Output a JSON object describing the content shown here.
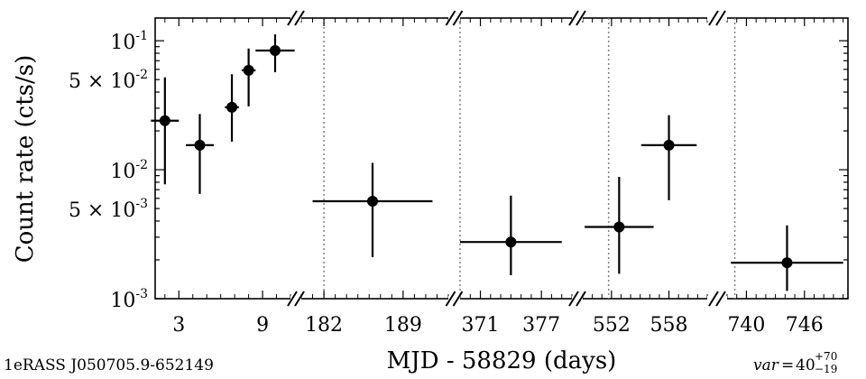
{
  "chart_data": {
    "type": "scatter",
    "title": "",
    "xlabel": "MJD - 58829 (days)",
    "ylabel": "Count rate (cts/s)",
    "yscale": "log",
    "ylim": [
      0.001,
      0.15
    ],
    "ytick_labels": [
      {
        "value": 0.1,
        "label": "10^{-1}"
      },
      {
        "value": 0.05,
        "label": "5 × 10^{-2}"
      },
      {
        "value": 0.01,
        "label": "10^{-2}"
      },
      {
        "value": 0.005,
        "label": "5 × 10^{-3}"
      },
      {
        "value": 0.001,
        "label": "10^{-3}"
      }
    ],
    "broken_x_axis": true,
    "segments": [
      {
        "xlim": [
          1.3,
          11.0
        ],
        "xticks": [
          3,
          9
        ],
        "xtick_labels": [
          "3",
          "9"
        ],
        "points": [
          {
            "x": 2.0,
            "y": 0.024,
            "x_err": 1.0,
            "y_low": 0.0077,
            "y_high": 0.052
          },
          {
            "x": 4.5,
            "y": 0.0155,
            "x_err": 1.0,
            "y_low": 0.0065,
            "y_high": 0.027
          },
          {
            "x": 6.8,
            "y": 0.0305,
            "x_err": 0.5,
            "y_low": 0.0165,
            "y_high": 0.055
          },
          {
            "x": 8.0,
            "y": 0.059,
            "x_err": 0.5,
            "y_low": 0.031,
            "y_high": 0.087
          },
          {
            "x": 9.9,
            "y": 0.084,
            "x_err": 1.4,
            "y_low": 0.057,
            "y_high": 0.112
          }
        ]
      },
      {
        "xlim": [
          180.0,
          193.0
        ],
        "vline": 182.0,
        "xticks": [
          182,
          189
        ],
        "xtick_labels": [
          "182",
          "189"
        ],
        "points": [
          {
            "x": 186.3,
            "y": 0.0057,
            "x_err": 5.3,
            "y_low": 0.0021,
            "y_high": 0.0113
          }
        ]
      },
      {
        "xlim": [
          369.0,
          380.0
        ],
        "vline": 369.0,
        "xticks": [
          371,
          377
        ],
        "xtick_labels": [
          "371",
          "377"
        ],
        "points": [
          {
            "x": 374.0,
            "y": 0.00275,
            "x_err": 5.0,
            "y_low": 0.00152,
            "y_high": 0.0063
          }
        ]
      },
      {
        "xlim": [
          549.0,
          562.0
        ],
        "vline": 551.7,
        "xticks": [
          552,
          558
        ],
        "xtick_labels": [
          "552",
          "558"
        ],
        "points": [
          {
            "x": 552.8,
            "y": 0.0036,
            "x_err": 3.6,
            "y_low": 0.00156,
            "y_high": 0.0088
          },
          {
            "x": 558.0,
            "y": 0.0155,
            "x_err": 2.9,
            "y_low": 0.0058,
            "y_high": 0.0265
          }
        ]
      },
      {
        "xlim": [
          738.0,
          750.5
        ],
        "vline": 738.8,
        "xticks": [
          740,
          746
        ],
        "xtick_labels": [
          "740",
          "746"
        ],
        "points": [
          {
            "x": 744.2,
            "y": 0.0019,
            "x_err": 5.8,
            "y_low": 0.00115,
            "y_high": 0.0037
          }
        ]
      }
    ],
    "source_name": "1eRASS J050705.9-652149",
    "variability": {
      "label": "var",
      "value": "40",
      "upper": "+70",
      "lower": "−19"
    },
    "colors": {
      "marker": "#000000",
      "axis": "#000000",
      "divider": "#808080"
    }
  }
}
